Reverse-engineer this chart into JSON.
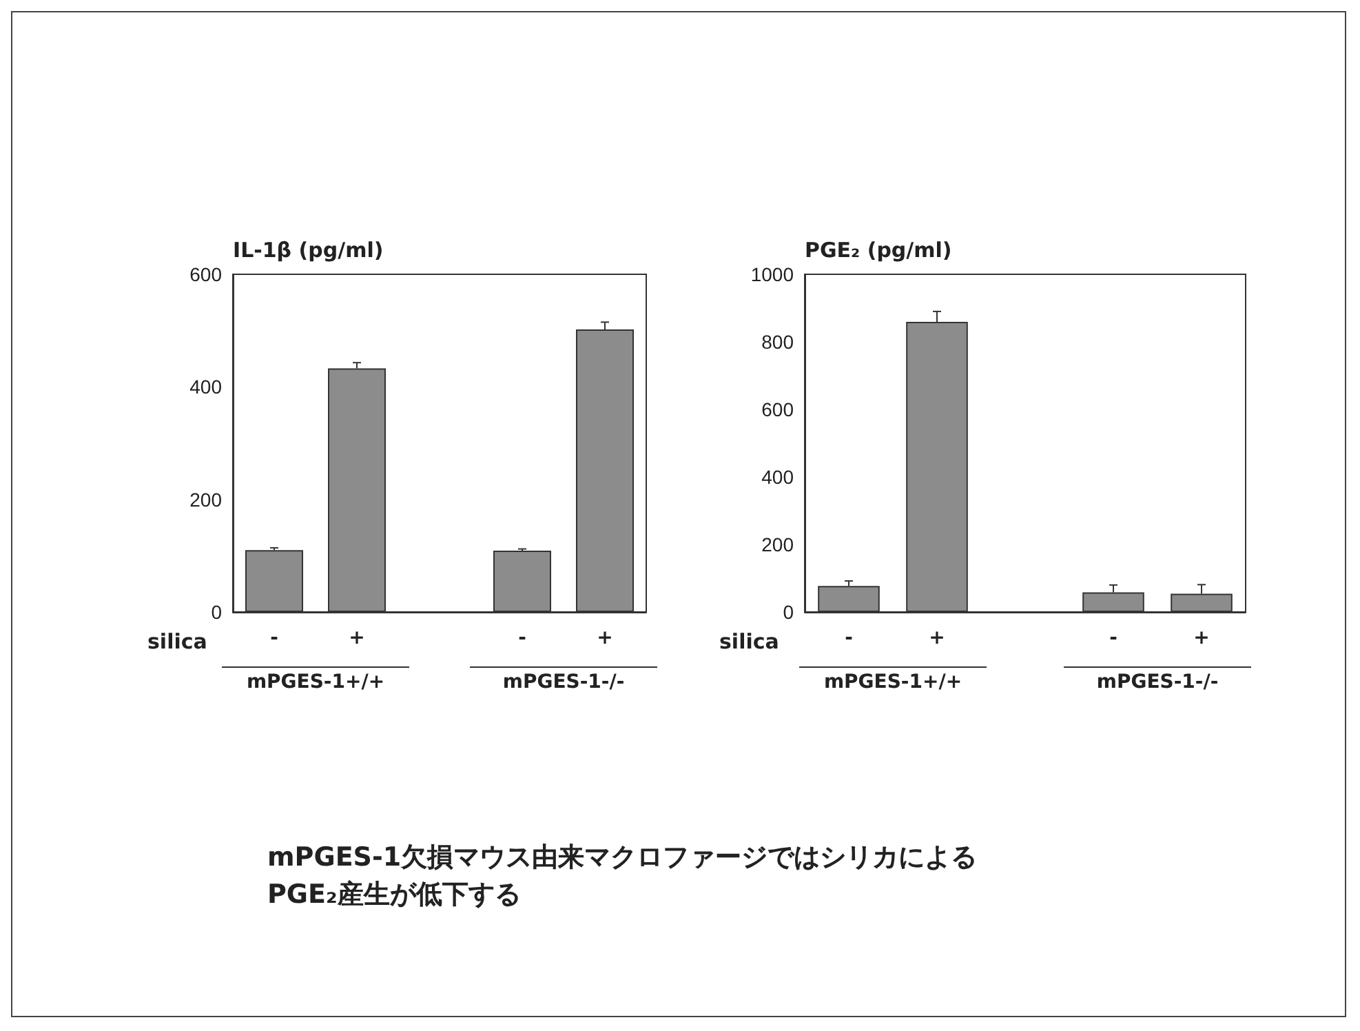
{
  "chart_data": [
    {
      "type": "bar",
      "ylabel": "IL-1β (pg/ml)",
      "categories": [
        "-",
        "+",
        null,
        "-",
        "+"
      ],
      "values": [
        110,
        433,
        null,
        109,
        502
      ],
      "errors": [
        4,
        10,
        null,
        3,
        13
      ],
      "color": "#8c8c8c",
      "ylim": [
        0,
        600
      ],
      "yticks": [
        0,
        200,
        400,
        600
      ],
      "grid": false,
      "annotations": [
        "silica",
        "mPGES-1+/+",
        "mPGES-1-/-"
      ]
    },
    {
      "type": "bar",
      "ylabel": "PGE₂ (pg/ml)",
      "categories": [
        "-",
        "+",
        null,
        "-",
        "+"
      ],
      "values": [
        77,
        859,
        null,
        58,
        54
      ],
      "errors": [
        15,
        31,
        null,
        22,
        27
      ],
      "color": "#8c8c8c",
      "ylim": [
        0,
        1000
      ],
      "yticks": [
        0,
        200,
        400,
        600,
        800,
        1000
      ],
      "grid": false,
      "annotations": [
        "silica",
        "mPGES-1+/+",
        "mPGES-1-/-"
      ]
    },
    {
      "type": "other",
      "annotations": [
        "mPGES-1欠損マウス由来マクロファージではシリカによるPGE₂産生が低下する"
      ]
    }
  ]
}
